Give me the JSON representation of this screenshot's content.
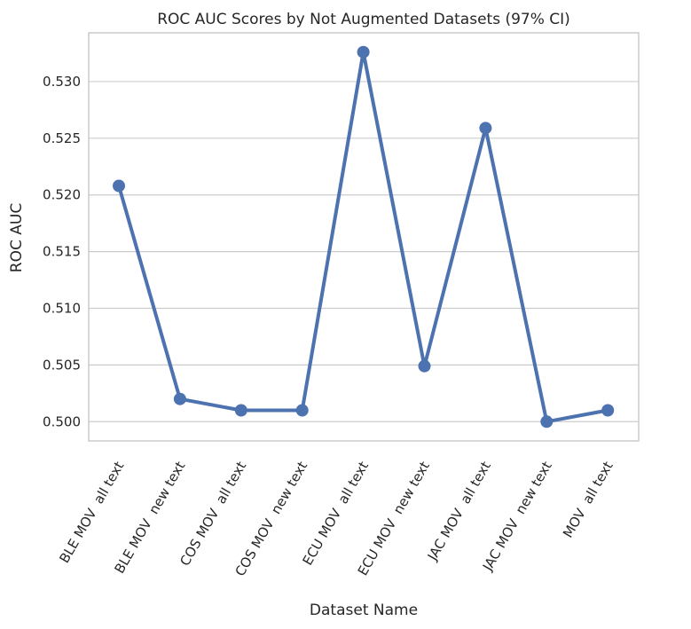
{
  "chart_data": {
    "type": "line",
    "title": "ROC AUC Scores by Not Augmented Datasets (97% CI)",
    "xlabel": "Dataset Name",
    "ylabel": "ROC AUC",
    "categories": [
      "BLE MOV  all text",
      "BLE MOV  new text",
      "COS MOV  all text",
      "COS MOV  new text",
      "ECU MOV  all text",
      "ECU MOV  new text",
      "JAC MOV  all text",
      "JAC MOV  new text",
      "MOV  all text"
    ],
    "values": [
      0.5208,
      0.502,
      0.501,
      0.501,
      0.5326,
      0.5049,
      0.5259,
      0.5,
      0.501
    ],
    "ylim": [
      0.4983,
      0.5343
    ],
    "yticks": [
      "0.500",
      "0.505",
      "0.510",
      "0.515",
      "0.520",
      "0.525",
      "0.530"
    ],
    "grid": "horizontal",
    "colors": {
      "line": "#4c72b0",
      "grid": "#cccccc",
      "frame": "#cccccc",
      "text": "#262626"
    }
  }
}
